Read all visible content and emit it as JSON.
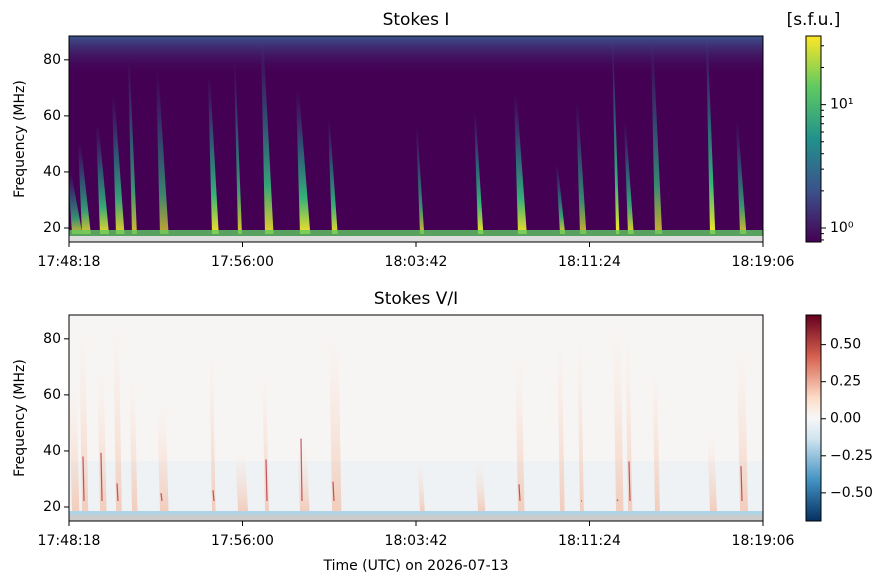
{
  "chart_data": [
    {
      "type": "heatmap",
      "title": "Stokes I",
      "y_label": "Frequency (MHz)",
      "ylim": [
        15,
        88.5
      ],
      "yticks": [
        20,
        40,
        60,
        80
      ],
      "xticks": [
        "17:48:18",
        "17:56:00",
        "18:03:42",
        "18:11:24",
        "18:19:06"
      ],
      "colorbar": {
        "label": "[s.f.u.]",
        "scale": "log",
        "colormap": "viridis",
        "lim": [
          0.77,
          36
        ],
        "ticks": [
          {
            "value": 1,
            "label": "10⁰"
          },
          {
            "value": 10,
            "label": "10¹"
          }
        ]
      }
    },
    {
      "type": "heatmap",
      "title": "Stokes V/I",
      "y_label": "Frequency (MHz)",
      "x_label": "Time (UTC) on 2026-07-13",
      "ylim": [
        15,
        88.5
      ],
      "yticks": [
        20,
        40,
        60,
        80
      ],
      "xticks": [
        "17:48:18",
        "17:56:00",
        "18:03:42",
        "18:11:24",
        "18:19:06"
      ],
      "colorbar": {
        "scale": "linear",
        "colormap": "RdBu_r",
        "lim": [
          -0.69,
          0.7
        ],
        "ticks": [
          {
            "value": -0.5,
            "label": "−0.50"
          },
          {
            "value": -0.25,
            "label": "−0.25"
          },
          {
            "value": 0,
            "label": "0.00"
          },
          {
            "value": 0.25,
            "label": "0.25"
          },
          {
            "value": 0.5,
            "label": "0.50"
          }
        ]
      }
    }
  ]
}
